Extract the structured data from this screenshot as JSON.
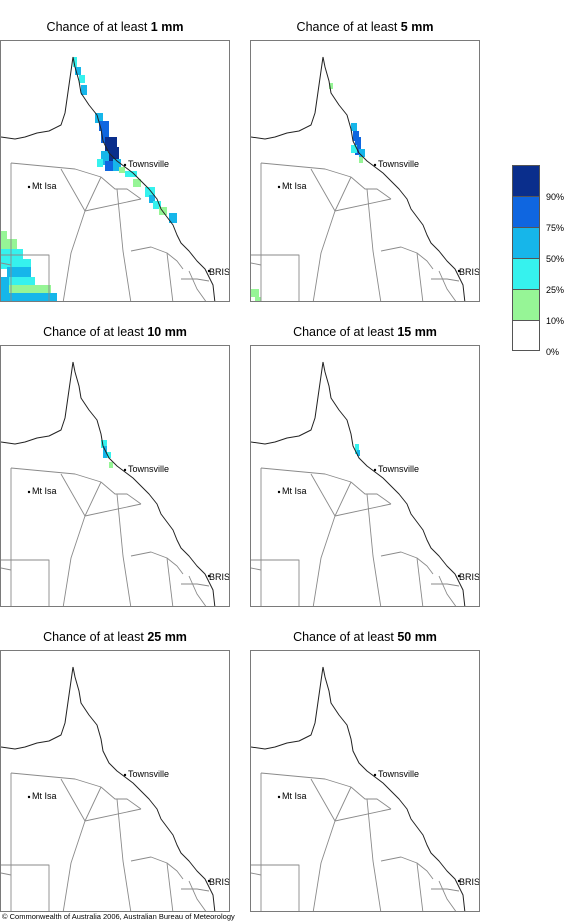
{
  "panels": [
    {
      "prefix": "Chance of at least ",
      "amount": "1 mm",
      "fill": "p1"
    },
    {
      "prefix": "Chance of at least ",
      "amount": "5 mm",
      "fill": "p5"
    },
    {
      "prefix": "Chance of at least ",
      "amount": "10 mm",
      "fill": "p10"
    },
    {
      "prefix": "Chance of at least ",
      "amount": "15 mm",
      "fill": "p15"
    },
    {
      "prefix": "Chance of at least ",
      "amount": "25 mm",
      "fill": "none"
    },
    {
      "prefix": "Chance of at least ",
      "amount": "50 mm",
      "fill": "none"
    }
  ],
  "places": {
    "townsville": "Townsville",
    "mt_isa": "Mt Isa",
    "bris": "BRIS"
  },
  "legend": {
    "labels": [
      "90%",
      "75%",
      "50%",
      "25%",
      "10%",
      "0%"
    ],
    "colors": [
      "#0a2e8c",
      "#0f66e0",
      "#16b6ea",
      "#36f2ee",
      "#96f596",
      "#ffffff"
    ]
  },
  "copyright": "© Commonwealth of Australia 2006, Australian Bureau of Meteorology"
}
